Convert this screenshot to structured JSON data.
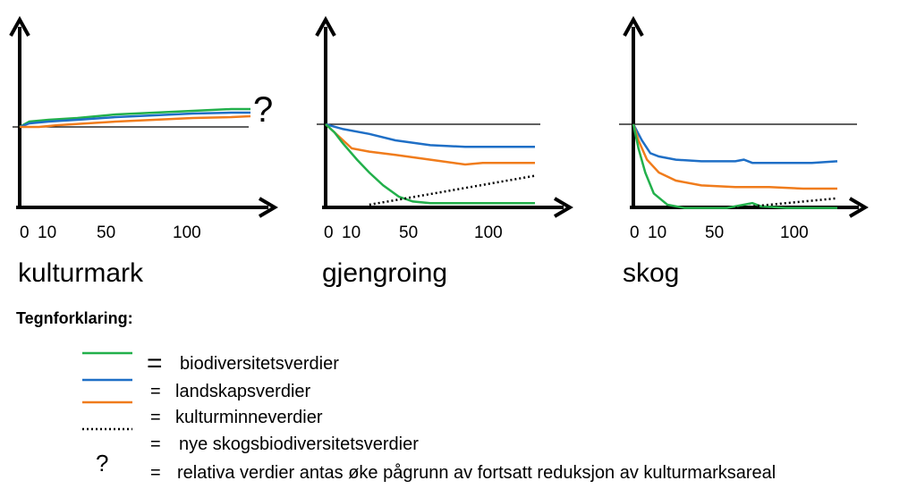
{
  "colors": {
    "biodiversity": "#22b04b",
    "landscape": "#1f6fc6",
    "landscape_orange": "#f07c1c",
    "heritage": "#000000",
    "axis": "#000000",
    "reference": "#000000"
  },
  "tick_labels": [
    "0",
    "10",
    "50",
    "100"
  ],
  "panels": [
    {
      "title": "kulturmark",
      "annotation": "?",
      "series": {
        "green": [
          [
            0,
            0
          ],
          [
            5,
            3
          ],
          [
            15,
            4
          ],
          [
            30,
            5
          ],
          [
            50,
            7
          ],
          [
            70,
            8
          ],
          [
            90,
            9
          ],
          [
            110,
            10
          ],
          [
            120,
            10
          ]
        ],
        "blue": [
          [
            0,
            0
          ],
          [
            5,
            2
          ],
          [
            15,
            3
          ],
          [
            30,
            4
          ],
          [
            50,
            5.5
          ],
          [
            70,
            6.5
          ],
          [
            90,
            7.5
          ],
          [
            110,
            8
          ],
          [
            120,
            8
          ]
        ],
        "orange": [
          [
            0,
            0
          ],
          [
            10,
            0
          ],
          [
            20,
            1
          ],
          [
            35,
            2
          ],
          [
            50,
            3
          ],
          [
            70,
            4
          ],
          [
            90,
            5
          ],
          [
            110,
            5.5
          ],
          [
            120,
            6
          ]
        ]
      }
    },
    {
      "title": "gjengroing",
      "series": {
        "blue": [
          [
            0,
            0
          ],
          [
            10,
            -3
          ],
          [
            25,
            -6
          ],
          [
            40,
            -10
          ],
          [
            60,
            -13
          ],
          [
            80,
            -14
          ],
          [
            100,
            -14
          ],
          [
            120,
            -14
          ]
        ],
        "orange": [
          [
            0,
            0
          ],
          [
            5,
            -5
          ],
          [
            15,
            -15
          ],
          [
            25,
            -17
          ],
          [
            40,
            -19
          ],
          [
            60,
            -22
          ],
          [
            80,
            -25
          ],
          [
            90,
            -24
          ],
          [
            100,
            -24
          ],
          [
            120,
            -24
          ]
        ],
        "green": [
          [
            0,
            0
          ],
          [
            5,
            -5
          ],
          [
            10,
            -12
          ],
          [
            18,
            -22
          ],
          [
            25,
            -30
          ],
          [
            33,
            -38
          ],
          [
            42,
            -45
          ],
          [
            50,
            -48
          ],
          [
            60,
            -49
          ],
          [
            80,
            -49
          ],
          [
            100,
            -49
          ],
          [
            120,
            -49
          ]
        ],
        "dotted": [
          [
            25,
            -50
          ],
          [
            120,
            -32
          ]
        ]
      }
    },
    {
      "title": "skog",
      "series": {
        "blue": [
          [
            0,
            0
          ],
          [
            5,
            -10
          ],
          [
            10,
            -18
          ],
          [
            15,
            -20
          ],
          [
            25,
            -22
          ],
          [
            40,
            -23
          ],
          [
            60,
            -23
          ],
          [
            65,
            -22
          ],
          [
            70,
            -24
          ],
          [
            90,
            -24
          ],
          [
            105,
            -24
          ],
          [
            120,
            -23
          ]
        ],
        "orange": [
          [
            0,
            0
          ],
          [
            3,
            -10
          ],
          [
            8,
            -22
          ],
          [
            15,
            -30
          ],
          [
            25,
            -35
          ],
          [
            40,
            -38
          ],
          [
            60,
            -39
          ],
          [
            80,
            -39
          ],
          [
            100,
            -40
          ],
          [
            120,
            -40
          ]
        ],
        "green": [
          [
            0,
            0
          ],
          [
            3,
            -15
          ],
          [
            7,
            -30
          ],
          [
            12,
            -43
          ],
          [
            20,
            -50
          ],
          [
            30,
            -52
          ],
          [
            45,
            -52
          ],
          [
            55,
            -52
          ],
          [
            65,
            -50
          ],
          [
            70,
            -49
          ],
          [
            75,
            -51
          ],
          [
            90,
            -52
          ],
          [
            120,
            -52
          ]
        ],
        "dotted": [
          [
            60,
            -52
          ],
          [
            120,
            -46
          ]
        ]
      }
    }
  ],
  "legend": {
    "title": "Tegnforklaring:",
    "items": [
      {
        "symbol": "green-line",
        "eq": "=",
        "label": "biodiversitetsverdier"
      },
      {
        "symbol": "blue-line",
        "eq": "=",
        "label": "landskapsverdier"
      },
      {
        "symbol": "orange-line",
        "eq": "",
        "label": ""
      },
      {
        "symbol": "dotted-line",
        "eq": "=",
        "label": "kulturminneverdier"
      },
      {
        "symbol": "question",
        "symbol_text": "?",
        "eq": "=",
        "label": "nye skogsbiodiversitetsverdier"
      },
      {
        "symbol": "none",
        "eq": "=",
        "label": "relativa verdier antas øke pågrunn av fortsatt reduksjon av kulturmarksareal"
      }
    ]
  }
}
